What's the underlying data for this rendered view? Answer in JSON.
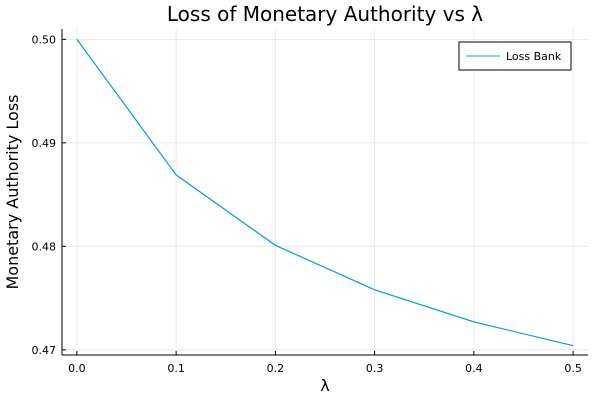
{
  "chart_data": {
    "type": "line",
    "title": "Loss of Monetary Authority vs λ",
    "xlabel": "λ",
    "ylabel": "Monetary Authority Loss",
    "xlim": [
      -0.015,
      0.515
    ],
    "ylim": [
      0.4695,
      0.501
    ],
    "xticks": [
      0.0,
      0.1,
      0.2,
      0.3,
      0.4,
      0.5
    ],
    "xtick_labels": [
      "0.0",
      "0.1",
      "0.2",
      "0.3",
      "0.4",
      "0.5"
    ],
    "yticks": [
      0.47,
      0.48,
      0.49,
      0.5
    ],
    "ytick_labels": [
      "0.47",
      "0.48",
      "0.49",
      "0.50"
    ],
    "grid": true,
    "legend_position": "top-right",
    "series": [
      {
        "name": "Loss Bank",
        "color": "#009af9",
        "x": [
          0.0,
          0.1,
          0.2,
          0.3,
          0.4,
          0.5
        ],
        "y": [
          0.5,
          0.4869,
          0.4801,
          0.4758,
          0.4727,
          0.4704
        ]
      }
    ]
  }
}
